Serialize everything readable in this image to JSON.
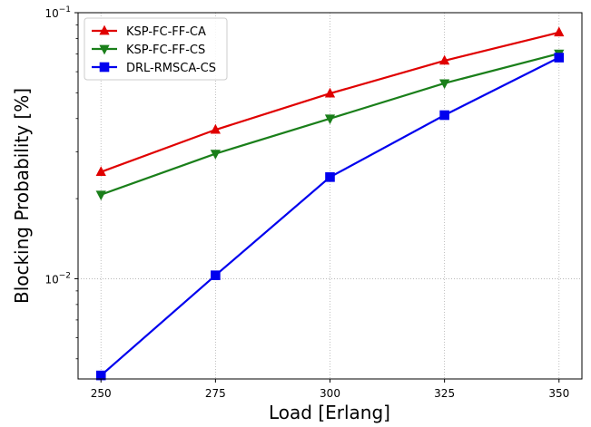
{
  "chart_data": {
    "type": "line",
    "xlabel": "Load [Erlang]",
    "ylabel": "Blocking Probability [%]",
    "x": [
      250,
      275,
      300,
      325,
      350
    ],
    "x_tick_labels": [
      "250",
      "275",
      "300",
      "325",
      "350"
    ],
    "xlim": [
      245,
      355
    ],
    "y_scale": "log",
    "ylim": [
      0.0042,
      0.1
    ],
    "y_major_ticks": [
      {
        "value": 0.01,
        "base": "10",
        "exp": "−2"
      },
      {
        "value": 0.1,
        "base": "10",
        "exp": "−1"
      }
    ],
    "grid": "dotted",
    "legend_position": "top-left",
    "series": [
      {
        "name": "KSP-FC-FF-CA",
        "color": "#e00000",
        "marker": "triangle-up",
        "values": [
          0.0252,
          0.0363,
          0.0497,
          0.066,
          0.0843
        ]
      },
      {
        "name": "KSP-FC-FF-CS",
        "color": "#1a7f1a",
        "marker": "triangle-down",
        "values": [
          0.0207,
          0.0295,
          0.04,
          0.0543,
          0.0702
        ]
      },
      {
        "name": "DRL-RMSCA-CS",
        "color": "#0000ee",
        "marker": "square",
        "values": [
          0.00433,
          0.0103,
          0.0241,
          0.0412,
          0.0678
        ]
      }
    ]
  }
}
